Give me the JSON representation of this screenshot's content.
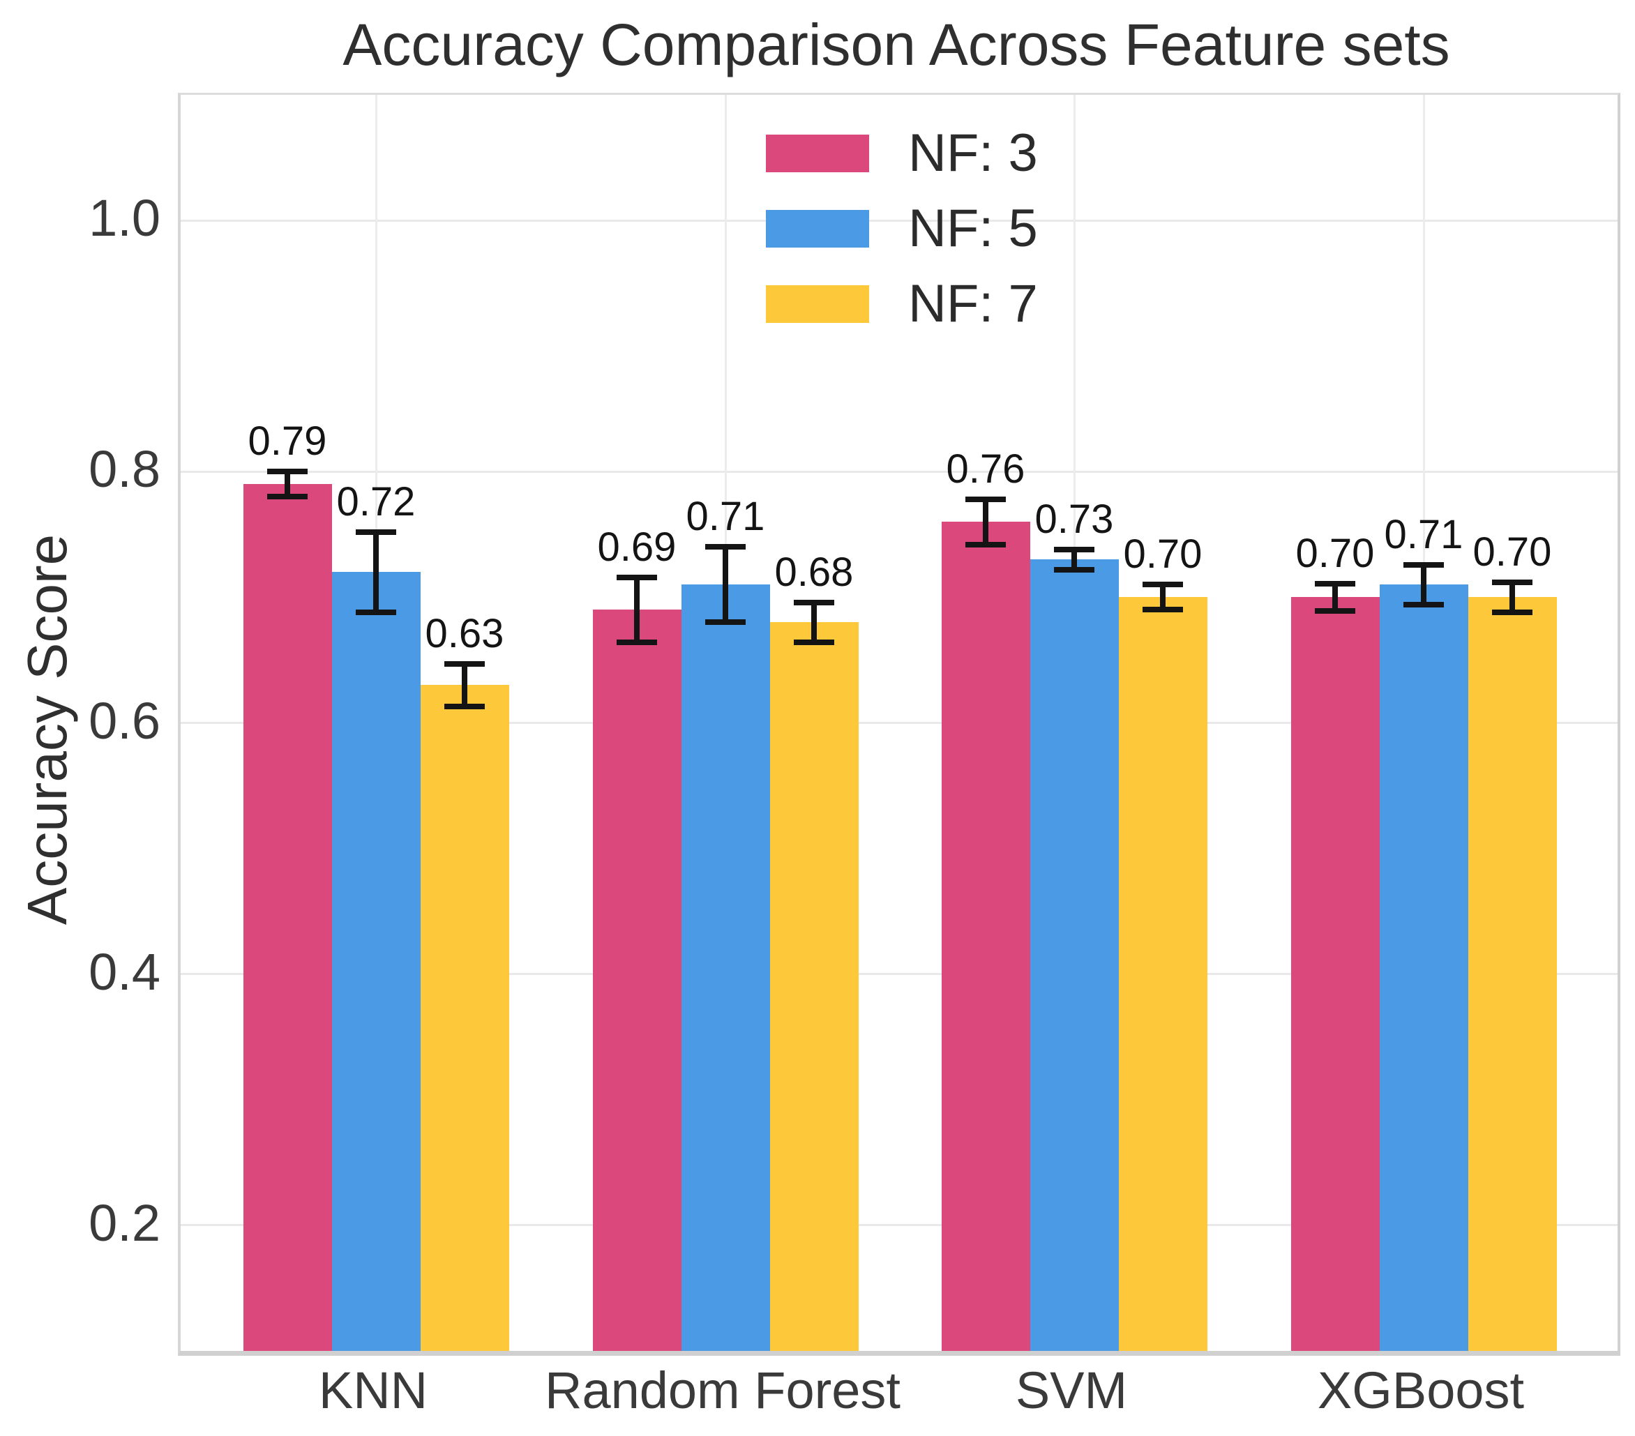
{
  "chart_data": {
    "type": "bar",
    "title": "Accuracy Comparison Across Feature sets",
    "xlabel": "",
    "ylabel": "Accuracy Score",
    "categories": [
      "KNN",
      "Random Forest",
      "SVM",
      "XGBoost"
    ],
    "series": [
      {
        "name": "NF: 3",
        "color": "#DB487B",
        "values": [
          0.79,
          0.69,
          0.76,
          0.7
        ],
        "errors": [
          0.01,
          0.026,
          0.018,
          0.011
        ],
        "value_labels": [
          "0.79",
          "0.69",
          "0.76",
          "0.70"
        ]
      },
      {
        "name": "NF: 5",
        "color": "#4A9AE5",
        "values": [
          0.72,
          0.71,
          0.73,
          0.71
        ],
        "errors": [
          0.032,
          0.03,
          0.008,
          0.016
        ],
        "value_labels": [
          "0.72",
          "0.71",
          "0.73",
          "0.71"
        ]
      },
      {
        "name": "NF: 7",
        "color": "#FDC93B",
        "values": [
          0.63,
          0.68,
          0.7,
          0.7
        ],
        "errors": [
          0.017,
          0.016,
          0.01,
          0.012
        ],
        "value_labels": [
          "0.63",
          "0.68",
          "0.70",
          "0.70"
        ]
      }
    ],
    "yticks": {
      "values": [
        0.2,
        0.4,
        0.6,
        0.8,
        1.0
      ],
      "labels": [
        "0.2",
        "0.4",
        "0.6",
        "0.8",
        "1.0"
      ]
    },
    "ylim": [
      0.1,
      1.1
    ],
    "grid": true,
    "legend_position": "upper center",
    "error_bar_color": "#141414"
  }
}
